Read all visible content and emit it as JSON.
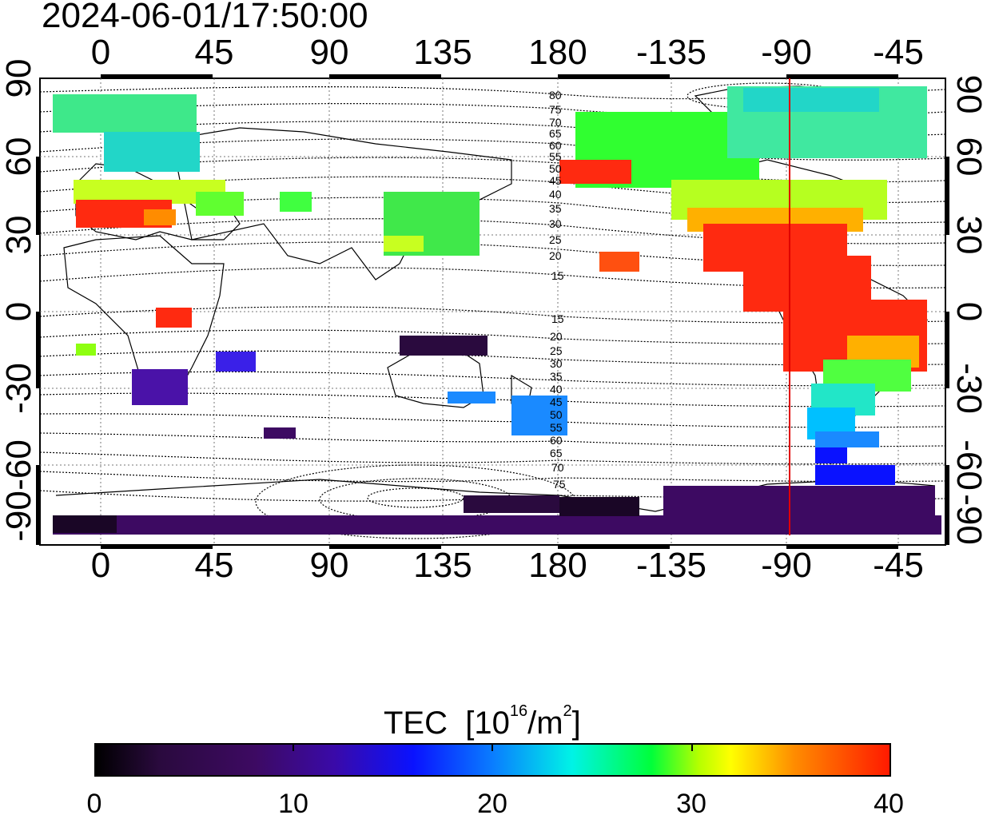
{
  "timestamp": "2024-06-01/17:50:00",
  "map": {
    "top_lon_labels": [
      "0",
      "45",
      "90",
      "135",
      "180",
      "-135",
      "-90",
      "-45"
    ],
    "bottom_lon_labels": [
      "0",
      "45",
      "90",
      "135",
      "180",
      "-135",
      "-90",
      "-45"
    ],
    "lat_labels": [
      "90",
      "60",
      "30",
      "0",
      "-30",
      "-60",
      "-90"
    ],
    "contour_labels_north": [
      "80",
      "75",
      "70",
      "65",
      "60",
      "55",
      "50",
      "45",
      "40",
      "35",
      "30",
      "25",
      "20",
      "15"
    ],
    "contour_labels_south": [
      "15",
      "20",
      "25",
      "30",
      "35",
      "40",
      "45",
      "50",
      "55",
      "60",
      "65",
      "70",
      "75"
    ],
    "marker_longitude": -90,
    "marker_color": "#e00000"
  },
  "colorbar": {
    "title": "TEC",
    "unit_prefix": "[10",
    "unit_exp1": "16",
    "unit_mid": "/m",
    "unit_exp2": "2",
    "unit_suffix": "]",
    "tick_labels": [
      "0",
      "10",
      "20",
      "30",
      "40"
    ],
    "range": [
      0,
      40
    ]
  },
  "colors": {
    "low": "#000000",
    "purple": "#3d0a62",
    "blue": "#0a12ff",
    "cyan": "#00f3e6",
    "green": "#00ff3a",
    "yellow": "#ffff00",
    "orange": "#ff8c00",
    "high": "#ff1a00"
  }
}
